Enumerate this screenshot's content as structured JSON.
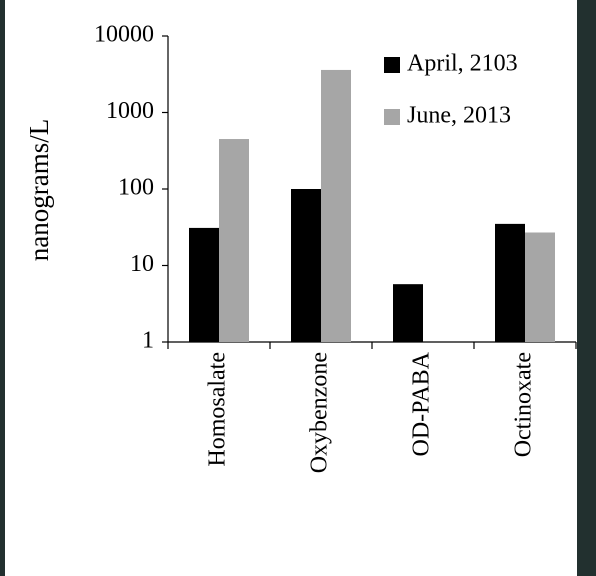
{
  "chart_data": {
    "type": "bar",
    "y_label": "nanograms/L",
    "categories": [
      "Homosalate",
      "Oxybenzone",
      "OD-PABA",
      "Octinoxate"
    ],
    "series": [
      {
        "name": "April, 2103",
        "color": "#000000",
        "values": [
          31,
          100,
          5.7,
          35
        ]
      },
      {
        "name": "June, 2013",
        "color": "#a6a6a6",
        "values": [
          450,
          3600,
          null,
          27
        ]
      }
    ],
    "ylim": [
      1,
      10000
    ],
    "yticks": [
      1,
      10,
      100,
      1000,
      10000
    ],
    "log_scale": true,
    "legend": "top-right"
  }
}
